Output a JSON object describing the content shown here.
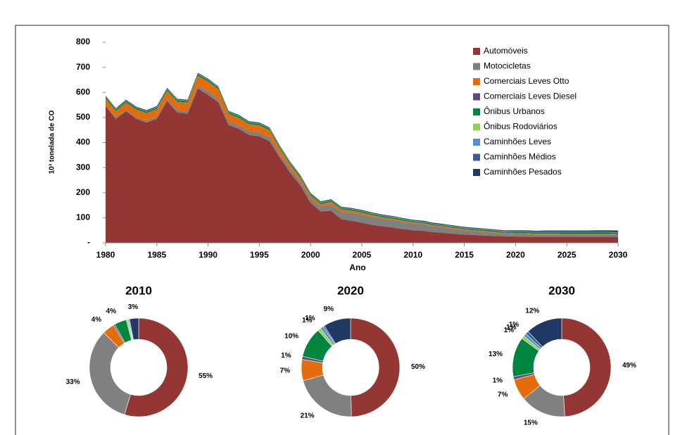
{
  "chart_data": [
    {
      "type": "stacked-area",
      "x_label": "Ano",
      "y_label": "10³ tonelada de CO",
      "x": [
        1980,
        1981,
        1982,
        1983,
        1984,
        1985,
        1986,
        1987,
        1988,
        1989,
        1990,
        1991,
        1992,
        1993,
        1994,
        1995,
        1996,
        1997,
        1998,
        1999,
        2000,
        2001,
        2002,
        2003,
        2004,
        2005,
        2006,
        2007,
        2008,
        2009,
        2010,
        2011,
        2012,
        2013,
        2014,
        2015,
        2016,
        2017,
        2018,
        2019,
        2020,
        2021,
        2022,
        2023,
        2024,
        2025,
        2026,
        2027,
        2028,
        2029,
        2030
      ],
      "xlim": [
        1980,
        2030
      ],
      "xticks": [
        1980,
        1985,
        1990,
        1995,
        2000,
        2005,
        2010,
        2015,
        2020,
        2025,
        2030
      ],
      "ylim": [
        0,
        800
      ],
      "yticks": [
        {
          "value": 0,
          "label": "-"
        },
        100,
        200,
        300,
        400,
        500,
        600,
        700,
        800
      ],
      "grid": false,
      "legend": "top-right",
      "series": [
        {
          "name": "Automóveis",
          "color": "#943634",
          "values": [
            545,
            495,
            525,
            495,
            480,
            495,
            565,
            520,
            515,
            615,
            590,
            560,
            470,
            455,
            430,
            425,
            405,
            340,
            280,
            230,
            160,
            125,
            128,
            95,
            88,
            80,
            72,
            66,
            61,
            55,
            50,
            48,
            43,
            40,
            36,
            33,
            31,
            29,
            27,
            26,
            25,
            25,
            24,
            24,
            24,
            24,
            24,
            24,
            24,
            24,
            24
          ]
        },
        {
          "name": "Motocicletas",
          "color": "#808080",
          "values": [
            5,
            5,
            6,
            6,
            7,
            8,
            9,
            10,
            11,
            13,
            15,
            15,
            14,
            14,
            15,
            15,
            16,
            16,
            17,
            17,
            18,
            20,
            25,
            30,
            32,
            33,
            32,
            31,
            30,
            29,
            28,
            26,
            23,
            21,
            19,
            17,
            15,
            14,
            13,
            11,
            10,
            10,
            9,
            9,
            9,
            8,
            8,
            8,
            8,
            8,
            7
          ]
        },
        {
          "name": "Comerciais Leves Otto",
          "color": "#e46c0a",
          "values": [
            25,
            25,
            28,
            30,
            30,
            30,
            32,
            32,
            33,
            38,
            38,
            37,
            30,
            29,
            28,
            28,
            27,
            20,
            15,
            12,
            10,
            9,
            10,
            8,
            8,
            7,
            6,
            5,
            5,
            4,
            4,
            4,
            4,
            4,
            4,
            4,
            4,
            4,
            3,
            3,
            3,
            3,
            3,
            3,
            3,
            3,
            3,
            3,
            3,
            3,
            3
          ]
        },
        {
          "name": "Comerciais Leves Diesel",
          "color": "#604a7b",
          "values": [
            1,
            1,
            1,
            1,
            1,
            1,
            1,
            1,
            1,
            1,
            1,
            1,
            1,
            1,
            1,
            1,
            1,
            1,
            1,
            1,
            1,
            1,
            1,
            1,
            1,
            1,
            1,
            1,
            1,
            1,
            1,
            1,
            1,
            1,
            1,
            1,
            1,
            1,
            1,
            1,
            1,
            1,
            1,
            1,
            1,
            1,
            1,
            1,
            1,
            1,
            1
          ]
        },
        {
          "name": "Ônibus Urbanos",
          "color": "#00853e",
          "values": [
            6,
            6,
            6,
            6,
            6,
            6,
            6,
            6,
            6,
            6,
            6,
            6,
            6,
            6,
            6,
            6,
            6,
            6,
            6,
            6,
            5,
            5,
            5,
            5,
            5,
            5,
            5,
            5,
            5,
            5,
            4,
            4,
            4,
            4,
            4,
            4,
            4,
            4,
            4,
            4,
            5,
            5,
            5,
            5,
            5,
            6,
            6,
            6,
            6,
            6,
            6
          ]
        },
        {
          "name": "Ônibus Rodoviários",
          "color": "#92d050",
          "values": [
            1,
            1,
            1,
            1,
            1,
            1,
            1,
            1,
            1,
            1,
            1,
            1,
            1,
            1,
            1,
            1,
            1,
            1,
            1,
            1,
            1,
            1,
            1,
            1,
            1,
            1,
            1,
            1,
            1,
            1,
            1,
            1,
            1,
            1,
            1,
            1,
            1,
            1,
            1,
            1,
            1,
            1,
            1,
            1,
            1,
            1,
            1,
            1,
            1,
            1,
            1
          ]
        },
        {
          "name": "Caminhões Leves",
          "color": "#558ed5",
          "values": [
            0.5,
            0.5,
            0.5,
            0.5,
            0.5,
            0.5,
            0.5,
            0.5,
            0.5,
            0.5,
            0.5,
            0.5,
            0.5,
            0.5,
            0.5,
            0.5,
            0.5,
            0.5,
            0.5,
            0.5,
            0.5,
            0.5,
            0.5,
            0.5,
            0.5,
            0.5,
            0.5,
            0.5,
            0.5,
            0.5,
            0.5,
            0.5,
            0.5,
            0.5,
            0.5,
            0.5,
            0.5,
            0.5,
            0.5,
            0.5,
            0.5,
            0.5,
            0.5,
            0.5,
            0.5,
            0.5,
            0.5,
            0.5,
            0.5,
            0.5,
            0.5
          ]
        },
        {
          "name": "Caminhões Médios",
          "color": "#376092",
          "values": [
            0.5,
            0.5,
            0.5,
            0.5,
            0.5,
            0.5,
            0.5,
            0.5,
            0.5,
            0.5,
            0.5,
            0.5,
            0.5,
            0.5,
            0.5,
            0.5,
            0.5,
            0.5,
            0.5,
            0.5,
            0.5,
            0.5,
            0.5,
            0.5,
            0.5,
            0.5,
            0.5,
            0.5,
            0.5,
            0.5,
            0.5,
            0.5,
            0.5,
            0.5,
            0.5,
            0.5,
            0.5,
            0.5,
            0.5,
            0.5,
            0.5,
            0.5,
            0.5,
            0.5,
            0.5,
            0.5,
            0.5,
            0.5,
            0.5,
            0.5,
            0.5
          ]
        },
        {
          "name": "Caminhões Pesados",
          "color": "#1f3864",
          "values": [
            3,
            3,
            3,
            3,
            3,
            3,
            3,
            3,
            3,
            3,
            3,
            3,
            3,
            3,
            3,
            3,
            3,
            3,
            3,
            3,
            3,
            3,
            3,
            3,
            3,
            3,
            3,
            3,
            3,
            3,
            3,
            3,
            3,
            3,
            3,
            3,
            3,
            3,
            3,
            3,
            4,
            4,
            4,
            5,
            5,
            5,
            5,
            5,
            6,
            6,
            6
          ]
        }
      ]
    },
    {
      "type": "donut",
      "title": "2010",
      "colors": [
        "#943634",
        "#808080",
        "#e46c0a",
        "#604a7b",
        "#00853e",
        "#92d050",
        "#558ed5",
        "#376092",
        "#1f3864"
      ],
      "values": [
        55,
        33,
        4,
        0.5,
        4,
        0.5,
        0.3,
        0.3,
        3
      ],
      "value_labels": [
        "55%",
        "33%",
        "4%",
        null,
        "4%",
        null,
        null,
        null,
        "3%"
      ]
    },
    {
      "type": "donut",
      "title": "2020",
      "colors": [
        "#943634",
        "#808080",
        "#e46c0a",
        "#604a7b",
        "#00853e",
        "#92d050",
        "#558ed5",
        "#376092",
        "#1f3864"
      ],
      "values": [
        50,
        21,
        7,
        1,
        10,
        1,
        1,
        0.5,
        9
      ],
      "value_labels": [
        "50%",
        "21%",
        "7%",
        "1%",
        "10%",
        "1%",
        "1%",
        null,
        "9%"
      ]
    },
    {
      "type": "donut",
      "title": "2030",
      "colors": [
        "#943634",
        "#808080",
        "#e46c0a",
        "#604a7b",
        "#00853e",
        "#92d050",
        "#558ed5",
        "#376092",
        "#1f3864"
      ],
      "values": [
        49,
        15,
        7,
        1,
        13,
        1,
        1,
        1,
        12
      ],
      "value_labels": [
        "49%",
        "15%",
        "7%",
        "1%",
        "13%",
        "1%",
        "1%",
        "1%",
        "12%"
      ]
    }
  ]
}
